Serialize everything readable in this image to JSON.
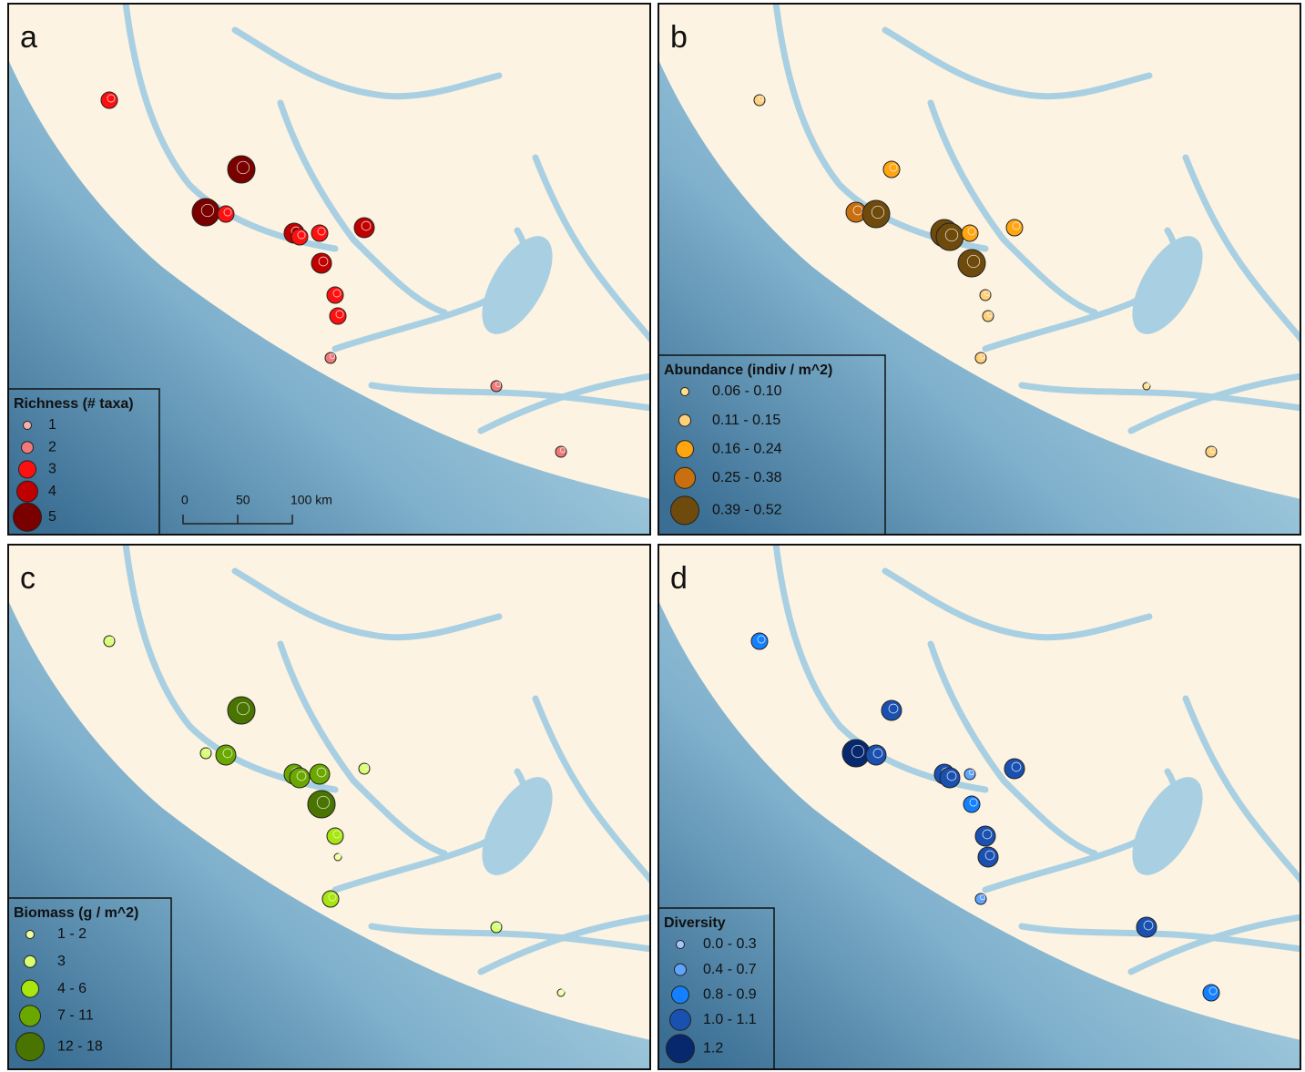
{
  "panels": [
    {
      "letter": "a",
      "legend": {
        "title": "Richness (# taxa)",
        "classes": [
          {
            "label": "1",
            "color": "#f7b0b0"
          },
          {
            "label": "2",
            "color": "#f07a7a"
          },
          {
            "label": "3",
            "color": "#ff1010"
          },
          {
            "label": "4",
            "color": "#c00000"
          },
          {
            "label": "5",
            "color": "#7a0000"
          }
        ]
      }
    },
    {
      "letter": "b",
      "legend": {
        "title": "Abundance (indiv / m^2)",
        "classes": [
          {
            "label": "0.06 - 0.10",
            "color": "#ffe08a"
          },
          {
            "label": "0.11 - 0.15",
            "color": "#ffd07a"
          },
          {
            "label": "0.16 - 0.24",
            "color": "#ffa510"
          },
          {
            "label": "0.25 - 0.38",
            "color": "#c87010"
          },
          {
            "label": "0.39 - 0.52",
            "color": "#6e4a0c"
          }
        ]
      }
    },
    {
      "letter": "c",
      "legend": {
        "title": "Biomass (g / m^2)",
        "classes": [
          {
            "label": "1 - 2",
            "color": "#eeffa0"
          },
          {
            "label": "3",
            "color": "#d8ff70"
          },
          {
            "label": "4 - 6",
            "color": "#a8e610"
          },
          {
            "label": "7 - 11",
            "color": "#6aa800"
          },
          {
            "label": "12 - 18",
            "color": "#4a7400"
          }
        ]
      }
    },
    {
      "letter": "d",
      "legend": {
        "title": "Diversity",
        "classes": [
          {
            "label": "0.0 - 0.3",
            "color": "#a8c4ff"
          },
          {
            "label": "0.4 - 0.7",
            "color": "#60a4ff"
          },
          {
            "label": "0.8 - 0.9",
            "color": "#1480ff"
          },
          {
            "label": "1.0 - 1.1",
            "color": "#1a50b0"
          },
          {
            "label": "1.2",
            "color": "#08286e"
          }
        ]
      }
    }
  ],
  "scale_bar": {
    "labels": [
      "0",
      "50",
      "100 km"
    ]
  }
}
